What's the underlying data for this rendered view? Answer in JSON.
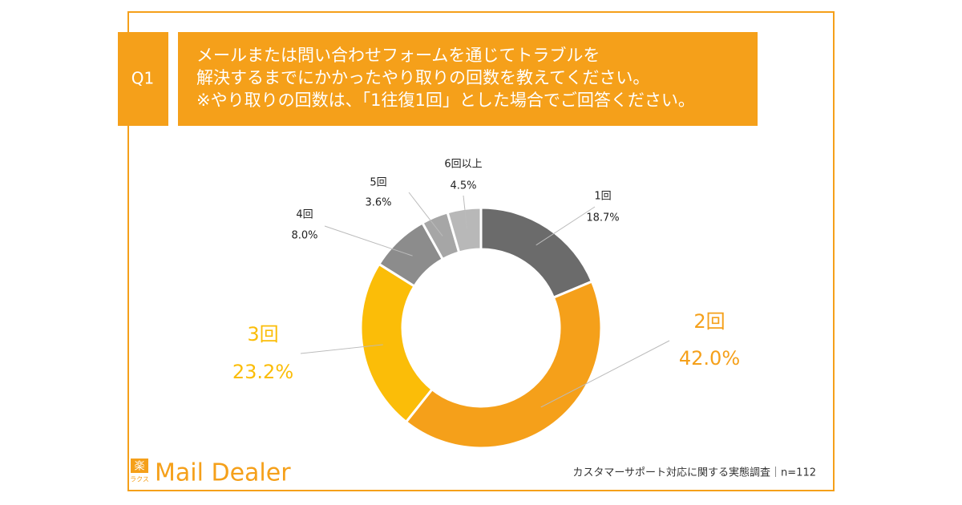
{
  "chart_data": {
    "type": "donut",
    "question_label": "Q1",
    "title": [
      "メールまたは問い合わせフォームを通じてトラブルを",
      "解決するまでにかかったやり取りの回数を教えてください。",
      "※やり取りの回数は、「1往復1回」とした場合でご回答ください。"
    ],
    "categories": [
      "1回",
      "2回",
      "3回",
      "4回",
      "5回",
      "6回以上"
    ],
    "values": [
      18.7,
      42.0,
      23.2,
      8.0,
      3.6,
      4.5
    ],
    "value_labels": [
      "18.7%",
      "42.0%",
      "23.2%",
      "8.0%",
      "3.6%",
      "4.5%"
    ],
    "colors": [
      "#6b6b6b",
      "#f5a01a",
      "#fbbd08",
      "#8c8c8c",
      "#a6a6a6",
      "#b8b8b8"
    ],
    "source": "カスタマーサポート対応に関する実態調査｜n=112",
    "logo": {
      "mark": "楽",
      "kana": "ラクス",
      "name": "Mail Dealer"
    }
  }
}
